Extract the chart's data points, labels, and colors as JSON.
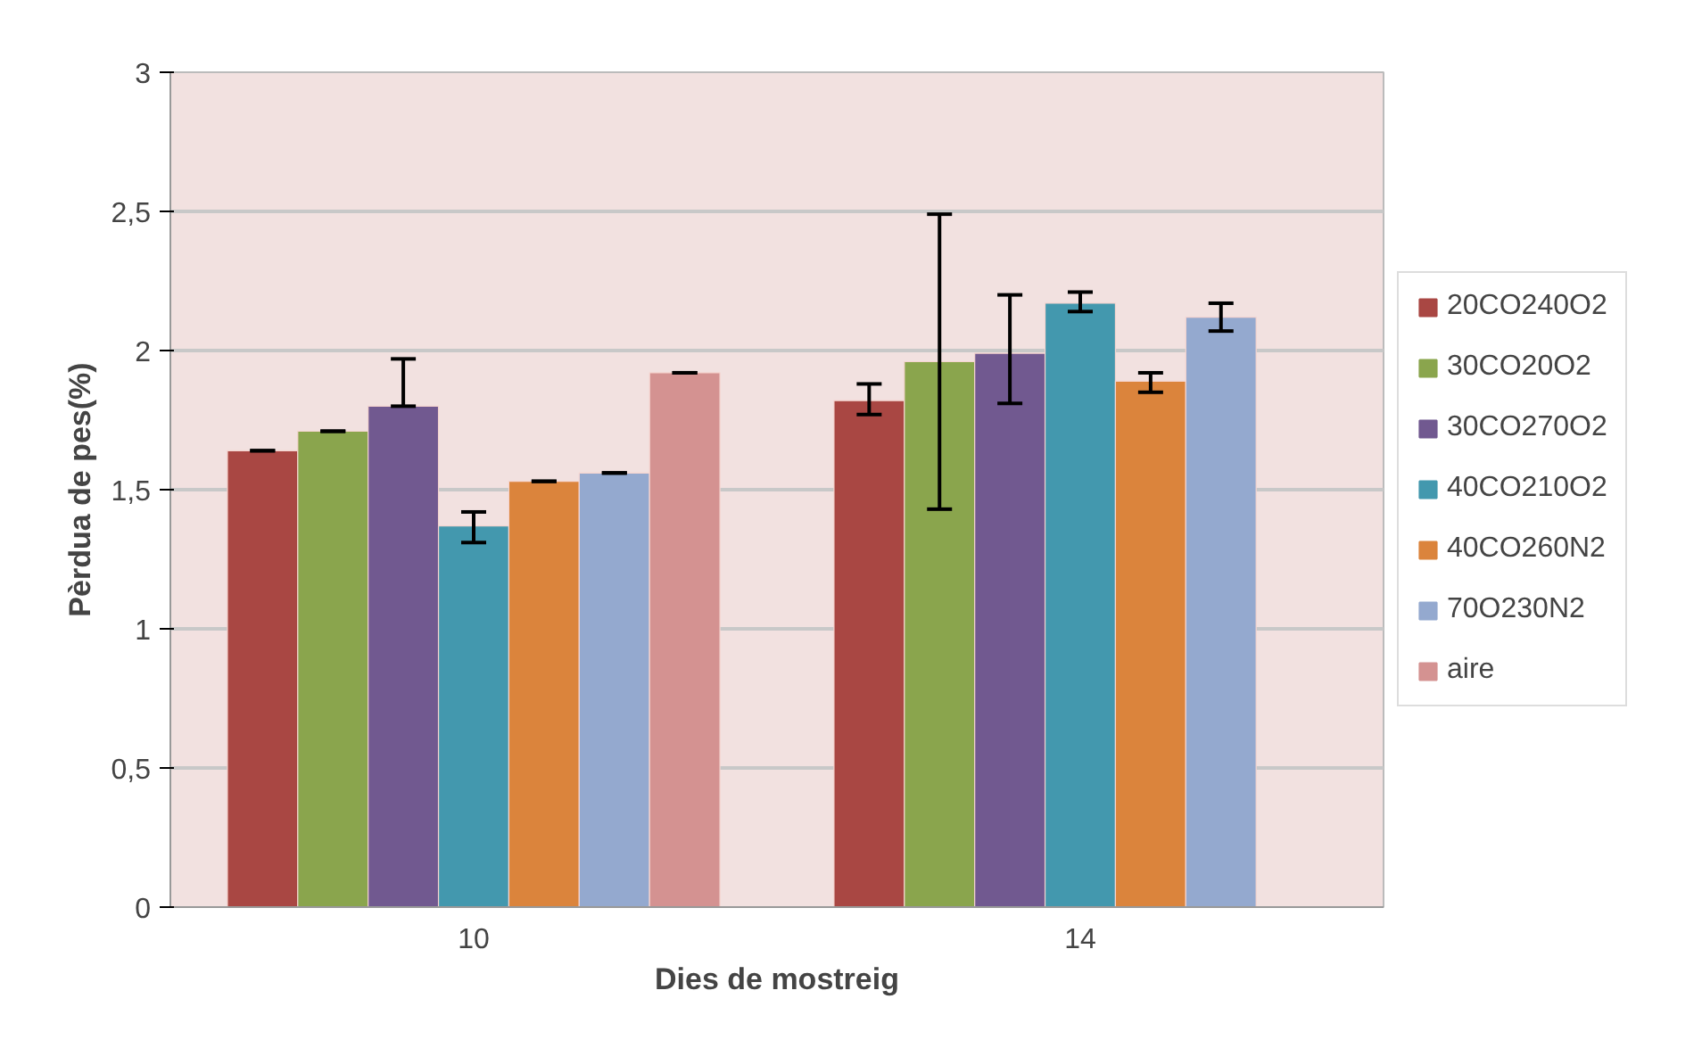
{
  "chart_data": {
    "type": "bar",
    "xlabel": "Dies de mostreig",
    "ylabel": "Pèrdua de pes(%)",
    "categories": [
      "10",
      "14"
    ],
    "series": [
      {
        "name": "20CO240O2",
        "color": "#a94743",
        "values": [
          1.64,
          1.82
        ],
        "errors": [
          0,
          [
            1.77,
            1.88
          ]
        ]
      },
      {
        "name": "30CO20O2",
        "color": "#8aa54d",
        "values": [
          1.71,
          1.96
        ],
        "errors": [
          0,
          [
            1.43,
            2.49
          ]
        ]
      },
      {
        "name": "30CO270O2",
        "color": "#715990",
        "values": [
          1.8,
          1.99
        ],
        "errors": [
          [
            1.8,
            1.97
          ],
          [
            1.81,
            2.2
          ]
        ]
      },
      {
        "name": "40CO210O2",
        "color": "#4398ae",
        "values": [
          1.37,
          2.17
        ],
        "errors": [
          [
            1.31,
            1.42
          ],
          [
            2.14,
            2.21
          ]
        ]
      },
      {
        "name": "40CO260N2",
        "color": "#db843c",
        "values": [
          1.53,
          1.89
        ],
        "errors": [
          0,
          [
            1.85,
            1.92
          ]
        ]
      },
      {
        "name": "70O230N2",
        "color": "#94a9cf",
        "values": [
          1.56,
          2.12
        ],
        "errors": [
          0,
          [
            2.07,
            2.17
          ]
        ]
      },
      {
        "name": "aire",
        "color": "#d49291",
        "values": [
          1.92,
          null
        ],
        "errors": [
          0,
          null
        ]
      }
    ],
    "ylim": [
      0,
      3
    ],
    "yticks": [
      0,
      {
        "value": 0.5,
        "label": "0,5"
      },
      1,
      {
        "value": 1.5,
        "label": "1,5"
      },
      2,
      {
        "value": 2.5,
        "label": "2,5"
      },
      3
    ],
    "grid": "y",
    "legend": "right"
  }
}
